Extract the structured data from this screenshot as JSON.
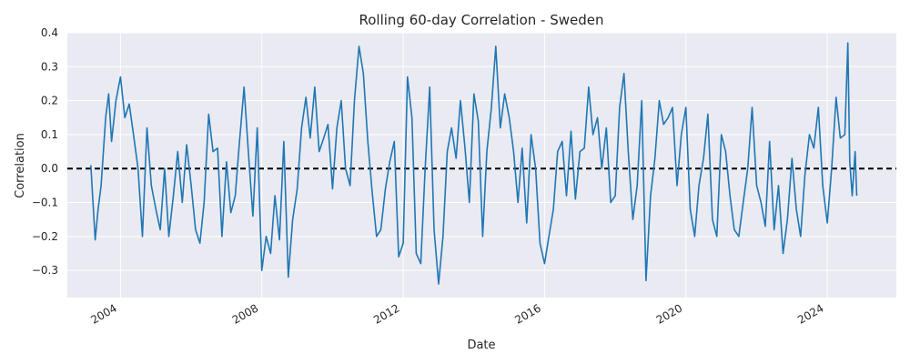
{
  "chart_data": {
    "type": "line",
    "title": "Rolling 60-day Correlation - Sweden",
    "xlabel": "Date",
    "ylabel": "Correlation",
    "xlim": [
      "2002-07-01",
      "2025-12-15"
    ],
    "ylim": [
      -0.38,
      0.4
    ],
    "x_ticks": [
      "2004-01-01",
      "2008-01-01",
      "2012-01-01",
      "2016-01-01",
      "2020-01-01",
      "2024-01-01"
    ],
    "x_tick_labels": [
      "2004",
      "2008",
      "2012",
      "2016",
      "2020",
      "2024"
    ],
    "y_ticks": [
      -0.3,
      -0.2,
      -0.1,
      0.0,
      0.1,
      0.2,
      0.3,
      0.4
    ],
    "y_tick_labels": [
      "−0.3",
      "−0.2",
      "−0.1",
      "0.0",
      "0.1",
      "0.2",
      "0.3",
      "0.4"
    ],
    "grid": true,
    "reference_line": {
      "y": 0.0,
      "style": "dashed",
      "color": "#000000"
    },
    "colors": {
      "series": "#1f77b4",
      "plot_background": "#eaeaf2",
      "grid": "#ffffff"
    },
    "series": [
      {
        "x": [
          "2003-03-01",
          "2003-04-15",
          "2003-05-15",
          "2003-06-15",
          "2003-08-01",
          "2003-09-01",
          "2003-10-01",
          "2003-11-15",
          "2004-01-01",
          "2004-02-15",
          "2004-04-01",
          "2004-05-15",
          "2004-07-01",
          "2004-08-15",
          "2004-10-01",
          "2004-11-15",
          "2005-01-01",
          "2005-02-15",
          "2005-04-01",
          "2005-05-15",
          "2005-07-01",
          "2005-08-15",
          "2005-10-01",
          "2005-11-15",
          "2006-01-01",
          "2006-02-15",
          "2006-04-01",
          "2006-05-15",
          "2006-07-01",
          "2006-08-15",
          "2006-10-01",
          "2006-11-15",
          "2007-01-01",
          "2007-02-15",
          "2007-04-01",
          "2007-05-15",
          "2007-07-01",
          "2007-08-15",
          "2007-10-01",
          "2007-11-15",
          "2008-01-01",
          "2008-02-15",
          "2008-04-01",
          "2008-05-15",
          "2008-07-01",
          "2008-08-15",
          "2008-10-01",
          "2008-11-15",
          "2009-01-01",
          "2009-02-15",
          "2009-04-01",
          "2009-05-15",
          "2009-07-01",
          "2009-08-15",
          "2009-10-01",
          "2009-11-15",
          "2010-01-01",
          "2010-02-15",
          "2010-04-01",
          "2010-05-15",
          "2010-07-01",
          "2010-08-15",
          "2010-10-01",
          "2010-11-15",
          "2011-01-01",
          "2011-02-15",
          "2011-04-01",
          "2011-05-15",
          "2011-07-01",
          "2011-08-15",
          "2011-10-01",
          "2011-11-15",
          "2012-01-01",
          "2012-02-15",
          "2012-04-01",
          "2012-05-15",
          "2012-07-01",
          "2012-08-15",
          "2012-10-01",
          "2012-11-15",
          "2013-01-01",
          "2013-02-15",
          "2013-04-01",
          "2013-05-15",
          "2013-07-01",
          "2013-08-15",
          "2013-10-01",
          "2013-11-15",
          "2014-01-01",
          "2014-02-15",
          "2014-04-01",
          "2014-05-15",
          "2014-07-01",
          "2014-08-15",
          "2014-10-01",
          "2014-11-15",
          "2015-01-01",
          "2015-02-15",
          "2015-04-01",
          "2015-05-15",
          "2015-07-01",
          "2015-08-15",
          "2015-10-01",
          "2015-11-15",
          "2016-01-01",
          "2016-02-15",
          "2016-04-01",
          "2016-05-15",
          "2016-07-01",
          "2016-08-15",
          "2016-10-01",
          "2016-11-15",
          "2017-01-01",
          "2017-02-15",
          "2017-04-01",
          "2017-05-15",
          "2017-07-01",
          "2017-08-15",
          "2017-10-01",
          "2017-11-15",
          "2018-01-01",
          "2018-02-15",
          "2018-04-01",
          "2018-05-15",
          "2018-07-01",
          "2018-08-15",
          "2018-10-01",
          "2018-11-15",
          "2019-01-01",
          "2019-02-15",
          "2019-04-01",
          "2019-05-15",
          "2019-07-01",
          "2019-08-15",
          "2019-10-01",
          "2019-11-15",
          "2020-01-01",
          "2020-02-15",
          "2020-04-01",
          "2020-05-15",
          "2020-07-01",
          "2020-08-15",
          "2020-10-01",
          "2020-11-15",
          "2021-01-01",
          "2021-02-15",
          "2021-04-01",
          "2021-05-15",
          "2021-07-01",
          "2021-08-15",
          "2021-10-01",
          "2021-11-15",
          "2022-01-01",
          "2022-02-15",
          "2022-04-01",
          "2022-05-15",
          "2022-07-01",
          "2022-08-15",
          "2022-10-01",
          "2022-11-15",
          "2023-01-01",
          "2023-02-15",
          "2023-04-01",
          "2023-05-15",
          "2023-07-01",
          "2023-08-15",
          "2023-10-01",
          "2023-11-15",
          "2024-01-01",
          "2024-02-15",
          "2024-04-01",
          "2024-05-15",
          "2024-07-01",
          "2024-08-01",
          "2024-08-20",
          "2024-09-15",
          "2024-10-15",
          "2024-11-01"
        ],
        "y": [
          0.01,
          -0.21,
          -0.12,
          -0.05,
          0.15,
          0.22,
          0.08,
          0.2,
          0.27,
          0.15,
          0.19,
          0.1,
          0.0,
          -0.2,
          0.12,
          -0.05,
          -0.12,
          -0.18,
          0.0,
          -0.2,
          -0.08,
          0.05,
          -0.1,
          0.07,
          -0.05,
          -0.18,
          -0.22,
          -0.1,
          0.16,
          0.05,
          0.06,
          -0.2,
          0.02,
          -0.13,
          -0.08,
          0.08,
          0.24,
          0.05,
          -0.14,
          0.12,
          -0.3,
          -0.2,
          -0.25,
          -0.08,
          -0.21,
          0.08,
          -0.32,
          -0.15,
          -0.06,
          0.12,
          0.21,
          0.09,
          0.24,
          0.05,
          0.09,
          0.13,
          -0.06,
          0.12,
          0.2,
          0.0,
          -0.05,
          0.2,
          0.36,
          0.28,
          0.08,
          -0.07,
          -0.2,
          -0.18,
          -0.06,
          0.02,
          0.08,
          -0.26,
          -0.22,
          0.27,
          0.15,
          -0.25,
          -0.28,
          0.0,
          0.24,
          -0.18,
          -0.34,
          -0.2,
          0.05,
          0.12,
          0.03,
          0.2,
          0.06,
          -0.1,
          0.22,
          0.14,
          -0.2,
          0.05,
          0.18,
          0.36,
          0.12,
          0.22,
          0.15,
          0.05,
          -0.1,
          0.06,
          -0.16,
          0.1,
          0.0,
          -0.22,
          -0.28,
          -0.2,
          -0.12,
          0.05,
          0.08,
          -0.08,
          0.11,
          -0.09,
          0.05,
          0.06,
          0.24,
          0.1,
          0.15,
          0.0,
          0.12,
          -0.1,
          -0.08,
          0.18,
          0.28,
          0.05,
          -0.15,
          -0.05,
          0.2,
          -0.33,
          -0.08,
          0.03,
          0.2,
          0.13,
          0.15,
          0.18,
          -0.05,
          0.1,
          0.18,
          -0.12,
          -0.2,
          -0.05,
          0.03,
          0.16,
          -0.15,
          -0.2,
          0.1,
          0.05,
          -0.08,
          -0.18,
          -0.2,
          -0.1,
          0.0,
          0.18,
          -0.05,
          -0.1,
          -0.17,
          0.08,
          -0.18,
          -0.05,
          -0.25,
          -0.15,
          0.03,
          -0.12,
          -0.2,
          -0.02,
          0.1,
          0.06,
          0.18,
          -0.05,
          -0.16,
          0.0,
          0.21,
          0.09,
          0.1,
          0.37,
          0.02,
          -0.08,
          0.05,
          -0.08
        ]
      }
    ]
  }
}
